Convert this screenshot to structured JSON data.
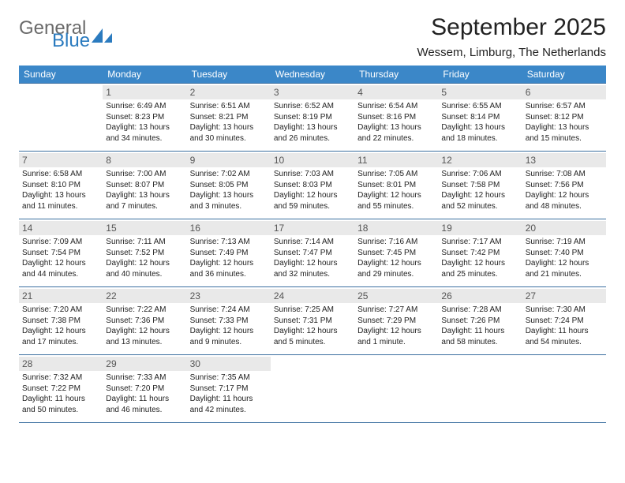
{
  "brand": {
    "word1": "General",
    "word2": "Blue"
  },
  "title": "September 2025",
  "location": "Wessem, Limburg, The Netherlands",
  "colors": {
    "header_bg": "#3b87c8",
    "header_text": "#ffffff",
    "border": "#3b6fa0",
    "daynum_bg": "#e9e9e9",
    "brand_gray": "#6a6a6a",
    "brand_blue": "#2b7bbf"
  },
  "day_headers": [
    "Sunday",
    "Monday",
    "Tuesday",
    "Wednesday",
    "Thursday",
    "Friday",
    "Saturday"
  ],
  "weeks": [
    [
      {
        "blank": true
      },
      {
        "num": "1",
        "sunrise": "6:49 AM",
        "sunset": "8:23 PM",
        "daylight": "13 hours and 34 minutes."
      },
      {
        "num": "2",
        "sunrise": "6:51 AM",
        "sunset": "8:21 PM",
        "daylight": "13 hours and 30 minutes."
      },
      {
        "num": "3",
        "sunrise": "6:52 AM",
        "sunset": "8:19 PM",
        "daylight": "13 hours and 26 minutes."
      },
      {
        "num": "4",
        "sunrise": "6:54 AM",
        "sunset": "8:16 PM",
        "daylight": "13 hours and 22 minutes."
      },
      {
        "num": "5",
        "sunrise": "6:55 AM",
        "sunset": "8:14 PM",
        "daylight": "13 hours and 18 minutes."
      },
      {
        "num": "6",
        "sunrise": "6:57 AM",
        "sunset": "8:12 PM",
        "daylight": "13 hours and 15 minutes."
      }
    ],
    [
      {
        "num": "7",
        "sunrise": "6:58 AM",
        "sunset": "8:10 PM",
        "daylight": "13 hours and 11 minutes."
      },
      {
        "num": "8",
        "sunrise": "7:00 AM",
        "sunset": "8:07 PM",
        "daylight": "13 hours and 7 minutes."
      },
      {
        "num": "9",
        "sunrise": "7:02 AM",
        "sunset": "8:05 PM",
        "daylight": "13 hours and 3 minutes."
      },
      {
        "num": "10",
        "sunrise": "7:03 AM",
        "sunset": "8:03 PM",
        "daylight": "12 hours and 59 minutes."
      },
      {
        "num": "11",
        "sunrise": "7:05 AM",
        "sunset": "8:01 PM",
        "daylight": "12 hours and 55 minutes."
      },
      {
        "num": "12",
        "sunrise": "7:06 AM",
        "sunset": "7:58 PM",
        "daylight": "12 hours and 52 minutes."
      },
      {
        "num": "13",
        "sunrise": "7:08 AM",
        "sunset": "7:56 PM",
        "daylight": "12 hours and 48 minutes."
      }
    ],
    [
      {
        "num": "14",
        "sunrise": "7:09 AM",
        "sunset": "7:54 PM",
        "daylight": "12 hours and 44 minutes."
      },
      {
        "num": "15",
        "sunrise": "7:11 AM",
        "sunset": "7:52 PM",
        "daylight": "12 hours and 40 minutes."
      },
      {
        "num": "16",
        "sunrise": "7:13 AM",
        "sunset": "7:49 PM",
        "daylight": "12 hours and 36 minutes."
      },
      {
        "num": "17",
        "sunrise": "7:14 AM",
        "sunset": "7:47 PM",
        "daylight": "12 hours and 32 minutes."
      },
      {
        "num": "18",
        "sunrise": "7:16 AM",
        "sunset": "7:45 PM",
        "daylight": "12 hours and 29 minutes."
      },
      {
        "num": "19",
        "sunrise": "7:17 AM",
        "sunset": "7:42 PM",
        "daylight": "12 hours and 25 minutes."
      },
      {
        "num": "20",
        "sunrise": "7:19 AM",
        "sunset": "7:40 PM",
        "daylight": "12 hours and 21 minutes."
      }
    ],
    [
      {
        "num": "21",
        "sunrise": "7:20 AM",
        "sunset": "7:38 PM",
        "daylight": "12 hours and 17 minutes."
      },
      {
        "num": "22",
        "sunrise": "7:22 AM",
        "sunset": "7:36 PM",
        "daylight": "12 hours and 13 minutes."
      },
      {
        "num": "23",
        "sunrise": "7:24 AM",
        "sunset": "7:33 PM",
        "daylight": "12 hours and 9 minutes."
      },
      {
        "num": "24",
        "sunrise": "7:25 AM",
        "sunset": "7:31 PM",
        "daylight": "12 hours and 5 minutes."
      },
      {
        "num": "25",
        "sunrise": "7:27 AM",
        "sunset": "7:29 PM",
        "daylight": "12 hours and 1 minute."
      },
      {
        "num": "26",
        "sunrise": "7:28 AM",
        "sunset": "7:26 PM",
        "daylight": "11 hours and 58 minutes."
      },
      {
        "num": "27",
        "sunrise": "7:30 AM",
        "sunset": "7:24 PM",
        "daylight": "11 hours and 54 minutes."
      }
    ],
    [
      {
        "num": "28",
        "sunrise": "7:32 AM",
        "sunset": "7:22 PM",
        "daylight": "11 hours and 50 minutes."
      },
      {
        "num": "29",
        "sunrise": "7:33 AM",
        "sunset": "7:20 PM",
        "daylight": "11 hours and 46 minutes."
      },
      {
        "num": "30",
        "sunrise": "7:35 AM",
        "sunset": "7:17 PM",
        "daylight": "11 hours and 42 minutes."
      },
      {
        "blank": true
      },
      {
        "blank": true
      },
      {
        "blank": true
      },
      {
        "blank": true
      }
    ]
  ],
  "labels": {
    "sunrise": "Sunrise:",
    "sunset": "Sunset:",
    "daylight": "Daylight:"
  }
}
